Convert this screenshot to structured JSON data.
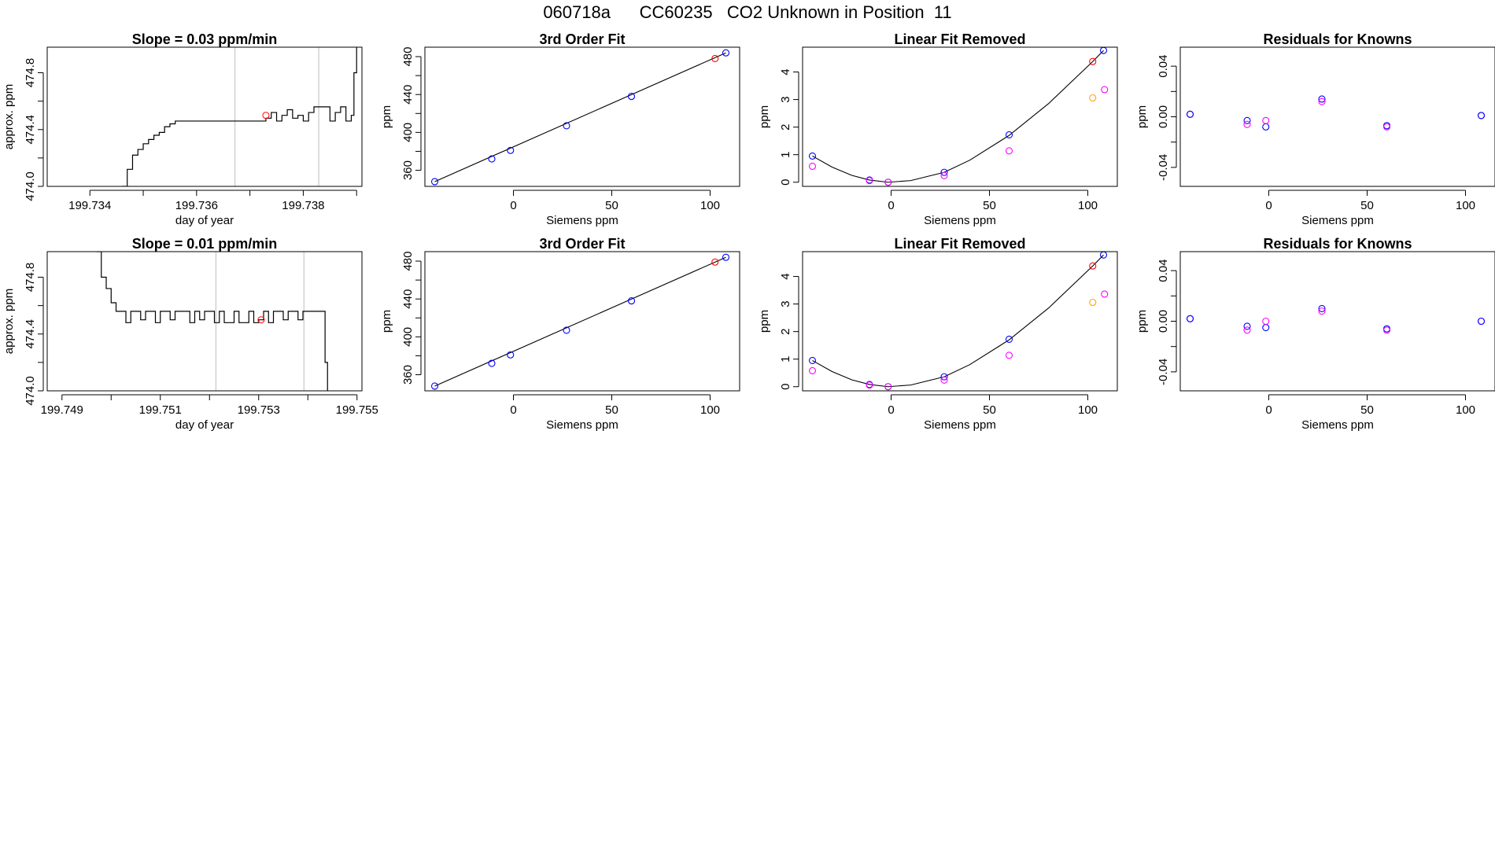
{
  "main_title": "060718a      CC60235   CO2 Unknown in Position  11",
  "colors": {
    "known_fit": "#0000ff",
    "known_alt": "#ff00ff",
    "unknown": "#ff0000",
    "unknown_alt": "#ffa500",
    "residual": "#a020f0",
    "line": "#000000",
    "vgrid": "#bebebe"
  },
  "chart_data": [
    {
      "type": "line",
      "panel": "row1-col1",
      "title": "Slope =  0.03  ppm/min",
      "xlabel": "day of year",
      "ylabel": "approx. ppm",
      "xlim": [
        199.7332,
        199.7391
      ],
      "ylim": [
        474.0,
        474.98
      ],
      "xticks": [
        199.734,
        199.735,
        199.736,
        199.737,
        199.738,
        199.739
      ],
      "xtick_labels": [
        "199.734",
        "",
        "199.736",
        "",
        "199.738",
        ""
      ],
      "yticks": [
        474.0,
        474.2,
        474.4,
        474.6,
        474.8
      ],
      "ytick_labels": [
        "474.0",
        "",
        "474.4",
        "",
        "474.8"
      ],
      "vlines": [
        199.73672,
        199.73829
      ],
      "series": [
        {
          "x": [
            199.7346,
            199.7347,
            199.7348,
            199.7349,
            199.735,
            199.7351,
            199.7352,
            199.7353,
            199.7354,
            199.7355,
            199.7356,
            199.7357,
            199.7358,
            199.7359,
            199.736,
            199.7361,
            199.7362,
            199.7363,
            199.7364,
            199.7365,
            199.7366,
            199.7367,
            199.7368,
            199.7369,
            199.737,
            199.7371,
            199.7372,
            199.7373,
            199.7374,
            199.7375,
            199.7376,
            199.7377,
            199.7378,
            199.7379,
            199.738,
            199.7381,
            199.7382,
            199.7383,
            199.7384,
            199.7385,
            199.7386,
            199.7387,
            199.7388,
            199.7389,
            199.73895,
            199.739
          ],
          "y": [
            474.0,
            474.12,
            474.22,
            474.26,
            474.3,
            474.33,
            474.36,
            474.38,
            474.42,
            474.44,
            474.46,
            474.46,
            474.46,
            474.46,
            474.46,
            474.46,
            474.46,
            474.46,
            474.46,
            474.46,
            474.46,
            474.46,
            474.46,
            474.46,
            474.46,
            474.46,
            474.46,
            474.48,
            474.52,
            474.46,
            474.5,
            474.54,
            474.48,
            474.5,
            474.46,
            474.52,
            474.56,
            474.56,
            474.56,
            474.46,
            474.52,
            474.56,
            474.46,
            474.5,
            474.8,
            474.98
          ]
        }
      ],
      "highlight_point": {
        "x": 199.7373,
        "y": 474.5
      }
    },
    {
      "type": "scatter",
      "panel": "row1-col2",
      "title": "3rd Order Fit",
      "xlabel": "Siemens ppm",
      "ylabel": "ppm",
      "xlim": [
        -45,
        115
      ],
      "ylim": [
        343,
        490
      ],
      "xticks": [
        0,
        50,
        100
      ],
      "yticks": [
        360,
        380,
        400,
        420,
        440,
        460,
        480
      ],
      "ytick_labels": [
        "360",
        "",
        "400",
        "",
        "440",
        "",
        "480"
      ],
      "line": {
        "x": [
          -40,
          108
        ],
        "y": [
          348,
          484
        ]
      },
      "points": [
        {
          "x": -40,
          "y": 348,
          "c": "known_fit"
        },
        {
          "x": -11,
          "y": 372,
          "c": "known_fit"
        },
        {
          "x": -1.5,
          "y": 381,
          "c": "known_fit"
        },
        {
          "x": 27,
          "y": 407,
          "c": "known_fit"
        },
        {
          "x": 60,
          "y": 438,
          "c": "known_fit"
        },
        {
          "x": 108,
          "y": 484,
          "c": "known_fit"
        },
        {
          "x": 102.5,
          "y": 478,
          "c": "unknown"
        }
      ]
    },
    {
      "type": "scatter",
      "panel": "row1-col3",
      "title": "Linear Fit Removed",
      "xlabel": "Siemens ppm",
      "ylabel": "ppm",
      "xlim": [
        -45,
        115
      ],
      "ylim": [
        -0.15,
        4.9
      ],
      "xticks": [
        0,
        50,
        100
      ],
      "yticks": [
        0,
        1,
        2,
        3,
        4
      ],
      "curve": {
        "x": [
          -40,
          -30,
          -20,
          -11,
          -1.5,
          10,
          27,
          40,
          60,
          80,
          102.5,
          108
        ],
        "y": [
          0.95,
          0.55,
          0.25,
          0.08,
          0.0,
          0.06,
          0.36,
          0.8,
          1.7,
          2.85,
          4.38,
          4.78
        ]
      },
      "points": [
        {
          "x": -40,
          "y": 0.95,
          "c": "known_fit"
        },
        {
          "x": -11,
          "y": 0.08,
          "c": "known_fit"
        },
        {
          "x": -1.5,
          "y": 0.0,
          "c": "known_fit"
        },
        {
          "x": 27,
          "y": 0.36,
          "c": "known_fit"
        },
        {
          "x": 60,
          "y": 1.72,
          "c": "known_fit"
        },
        {
          "x": 108,
          "y": 4.78,
          "c": "known_fit"
        },
        {
          "x": -40,
          "y": 0.58,
          "c": "known_alt"
        },
        {
          "x": -11,
          "y": 0.06,
          "c": "known_alt"
        },
        {
          "x": -1.5,
          "y": 0.0,
          "c": "known_alt"
        },
        {
          "x": 27,
          "y": 0.24,
          "c": "known_alt"
        },
        {
          "x": 60,
          "y": 1.14,
          "c": "known_alt"
        },
        {
          "x": 108.5,
          "y": 3.36,
          "c": "known_alt"
        },
        {
          "x": 102.5,
          "y": 4.38,
          "c": "unknown"
        },
        {
          "x": 102.5,
          "y": 3.06,
          "c": "unknown_alt"
        }
      ]
    },
    {
      "type": "scatter",
      "panel": "row1-col4",
      "title": "Residuals for Knowns",
      "xlabel": "Siemens ppm",
      "ylabel": "ppm",
      "xlim": [
        -45,
        115
      ],
      "ylim": [
        -0.055,
        0.055
      ],
      "xticks": [
        0,
        50,
        100
      ],
      "yticks": [
        -0.04,
        -0.02,
        0.0,
        0.02,
        0.04
      ],
      "ytick_labels": [
        "-0.04",
        "",
        "0.00",
        "",
        "0.04"
      ],
      "points": [
        {
          "x": -40,
          "y": 0.002,
          "c": "residual"
        },
        {
          "x": -40,
          "y": 0.002,
          "c": "known_fit"
        },
        {
          "x": -11,
          "y": -0.003,
          "c": "known_fit"
        },
        {
          "x": -11,
          "y": -0.006,
          "c": "known_alt"
        },
        {
          "x": -1.5,
          "y": -0.008,
          "c": "known_fit"
        },
        {
          "x": -1.5,
          "y": -0.003,
          "c": "known_alt"
        },
        {
          "x": 27,
          "y": 0.014,
          "c": "known_fit"
        },
        {
          "x": 27,
          "y": 0.012,
          "c": "known_alt"
        },
        {
          "x": 60,
          "y": -0.007,
          "c": "known_fit"
        },
        {
          "x": 60,
          "y": -0.008,
          "c": "known_alt"
        },
        {
          "x": 108,
          "y": 0.001,
          "c": "residual"
        },
        {
          "x": 108,
          "y": 0.001,
          "c": "known_fit"
        }
      ]
    },
    {
      "type": "line",
      "panel": "row2-col1",
      "title": "Slope =  0.01  ppm/min",
      "xlabel": "day of year",
      "ylabel": "approx. ppm",
      "xlim": [
        199.7487,
        199.7551
      ],
      "ylim": [
        474.0,
        474.98
      ],
      "xticks": [
        199.749,
        199.75,
        199.751,
        199.752,
        199.753,
        199.754,
        199.755
      ],
      "xtick_labels": [
        "199.749",
        "",
        "199.751",
        "",
        "199.753",
        "",
        "199.755"
      ],
      "yticks": [
        474.0,
        474.2,
        474.4,
        474.6,
        474.8
      ],
      "ytick_labels": [
        "474.0",
        "",
        "474.4",
        "",
        "474.8"
      ],
      "vlines": [
        199.75213,
        199.75392
      ],
      "series": [
        {
          "x": [
            199.7497,
            199.7498,
            199.7499,
            199.75,
            199.7501,
            199.7502,
            199.7503,
            199.7504,
            199.7505,
            199.7506,
            199.7507,
            199.7508,
            199.7509,
            199.751,
            199.7511,
            199.7512,
            199.7513,
            199.7514,
            199.7515,
            199.7516,
            199.7517,
            199.7518,
            199.7519,
            199.752,
            199.7521,
            199.7522,
            199.7523,
            199.7524,
            199.7525,
            199.7526,
            199.7527,
            199.7528,
            199.7529,
            199.753,
            199.7531,
            199.7532,
            199.7533,
            199.7534,
            199.7535,
            199.7536,
            199.7537,
            199.7538,
            199.7539,
            199.754,
            199.7541,
            199.7542,
            199.7543,
            199.75435,
            199.7544
          ],
          "y": [
            474.98,
            474.8,
            474.72,
            474.62,
            474.56,
            474.56,
            474.48,
            474.56,
            474.56,
            474.5,
            474.56,
            474.56,
            474.48,
            474.56,
            474.56,
            474.5,
            474.56,
            474.56,
            474.56,
            474.48,
            474.56,
            474.5,
            474.56,
            474.56,
            474.48,
            474.56,
            474.48,
            474.48,
            474.56,
            474.48,
            474.48,
            474.56,
            474.48,
            474.5,
            474.56,
            474.48,
            474.56,
            474.56,
            474.5,
            474.56,
            474.56,
            474.5,
            474.56,
            474.56,
            474.56,
            474.56,
            474.56,
            474.2,
            474.0
          ]
        }
      ],
      "highlight_point": {
        "x": 199.75305,
        "y": 474.5
      }
    },
    {
      "type": "scatter",
      "panel": "row2-col2",
      "title": "3rd Order Fit",
      "xlabel": "Siemens ppm",
      "ylabel": "ppm",
      "xlim": [
        -45,
        115
      ],
      "ylim": [
        343,
        490
      ],
      "xticks": [
        0,
        50,
        100
      ],
      "yticks": [
        360,
        380,
        400,
        420,
        440,
        460,
        480
      ],
      "ytick_labels": [
        "360",
        "",
        "400",
        "",
        "440",
        "",
        "480"
      ],
      "line": {
        "x": [
          -40,
          108
        ],
        "y": [
          348,
          484
        ]
      },
      "points": [
        {
          "x": -40,
          "y": 348,
          "c": "known_fit"
        },
        {
          "x": -11,
          "y": 372,
          "c": "known_fit"
        },
        {
          "x": -1.5,
          "y": 381,
          "c": "known_fit"
        },
        {
          "x": 27,
          "y": 407,
          "c": "known_fit"
        },
        {
          "x": 60,
          "y": 438,
          "c": "known_fit"
        },
        {
          "x": 108,
          "y": 484,
          "c": "known_fit"
        },
        {
          "x": 102.5,
          "y": 479,
          "c": "unknown"
        }
      ]
    },
    {
      "type": "scatter",
      "panel": "row2-col3",
      "title": "Linear Fit Removed",
      "xlabel": "Siemens ppm",
      "ylabel": "ppm",
      "xlim": [
        -45,
        115
      ],
      "ylim": [
        -0.15,
        4.9
      ],
      "xticks": [
        0,
        50,
        100
      ],
      "yticks": [
        0,
        1,
        2,
        3,
        4
      ],
      "curve": {
        "x": [
          -40,
          -30,
          -20,
          -11,
          -1.5,
          10,
          27,
          40,
          60,
          80,
          102.5,
          108
        ],
        "y": [
          0.95,
          0.55,
          0.25,
          0.08,
          0.0,
          0.06,
          0.36,
          0.8,
          1.7,
          2.85,
          4.38,
          4.78
        ]
      },
      "points": [
        {
          "x": -40,
          "y": 0.95,
          "c": "known_fit"
        },
        {
          "x": -11,
          "y": 0.08,
          "c": "known_fit"
        },
        {
          "x": -1.5,
          "y": 0.0,
          "c": "known_fit"
        },
        {
          "x": 27,
          "y": 0.36,
          "c": "known_fit"
        },
        {
          "x": 60,
          "y": 1.72,
          "c": "known_fit"
        },
        {
          "x": 108,
          "y": 4.78,
          "c": "known_fit"
        },
        {
          "x": -40,
          "y": 0.58,
          "c": "known_alt"
        },
        {
          "x": -11,
          "y": 0.06,
          "c": "known_alt"
        },
        {
          "x": -1.5,
          "y": 0.0,
          "c": "known_alt"
        },
        {
          "x": 27,
          "y": 0.24,
          "c": "known_alt"
        },
        {
          "x": 60,
          "y": 1.14,
          "c": "known_alt"
        },
        {
          "x": 108.5,
          "y": 3.36,
          "c": "known_alt"
        },
        {
          "x": 102.5,
          "y": 4.38,
          "c": "unknown"
        },
        {
          "x": 102.5,
          "y": 3.06,
          "c": "unknown_alt"
        }
      ]
    },
    {
      "type": "scatter",
      "panel": "row2-col4",
      "title": "Residuals for Knowns",
      "xlabel": "Siemens ppm",
      "ylabel": "ppm",
      "xlim": [
        -45,
        115
      ],
      "ylim": [
        -0.055,
        0.055
      ],
      "xticks": [
        0,
        50,
        100
      ],
      "yticks": [
        -0.04,
        -0.02,
        0.0,
        0.02,
        0.04
      ],
      "ytick_labels": [
        "-0.04",
        "",
        "0.00",
        "",
        "0.04"
      ],
      "points": [
        {
          "x": -40,
          "y": 0.002,
          "c": "residual"
        },
        {
          "x": -40,
          "y": 0.002,
          "c": "known_fit"
        },
        {
          "x": -11,
          "y": -0.004,
          "c": "known_fit"
        },
        {
          "x": -11,
          "y": -0.007,
          "c": "known_alt"
        },
        {
          "x": -1.5,
          "y": -0.005,
          "c": "known_fit"
        },
        {
          "x": -1.5,
          "y": 0.0,
          "c": "known_alt"
        },
        {
          "x": 27,
          "y": 0.01,
          "c": "known_fit"
        },
        {
          "x": 27,
          "y": 0.008,
          "c": "known_alt"
        },
        {
          "x": 60,
          "y": -0.006,
          "c": "known_fit"
        },
        {
          "x": 60,
          "y": -0.007,
          "c": "known_alt"
        },
        {
          "x": 108,
          "y": 0.0,
          "c": "residual"
        },
        {
          "x": 108,
          "y": 0.0,
          "c": "known_fit"
        }
      ]
    }
  ]
}
